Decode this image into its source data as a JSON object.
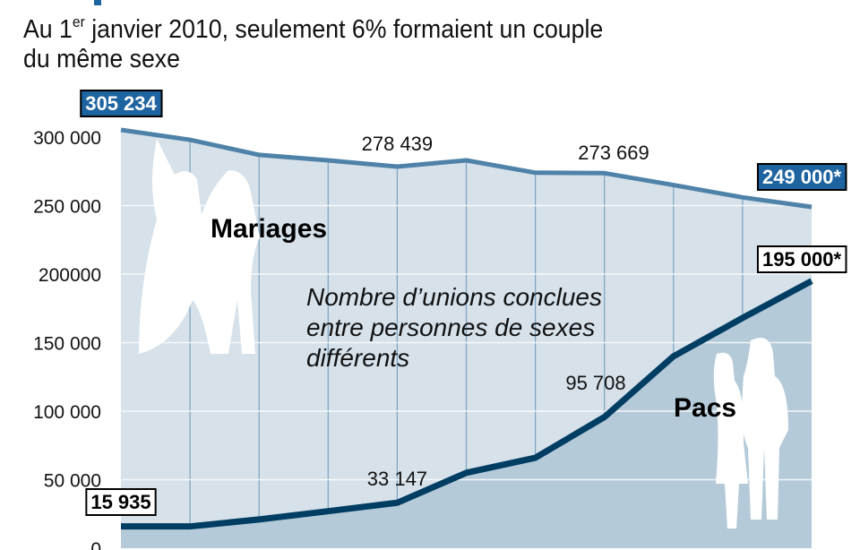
{
  "header": {
    "title_pre": "Au 1",
    "title_sup": "er",
    "title_post": " janvier 2010, seulement 6% formaient un couple",
    "title_line2": "du même sexe"
  },
  "chart_data": {
    "type": "area",
    "title": "Au 1er janvier 2010, seulement 6% formaient un couple du même sexe",
    "xlabel": "",
    "ylabel": "",
    "ylim": [
      0,
      300000
    ],
    "yticks": [
      {
        "v": 0,
        "label": "0"
      },
      {
        "v": 50000,
        "label": "50 000"
      },
      {
        "v": 100000,
        "label": "100 000"
      },
      {
        "v": 150000,
        "label": "150 000"
      },
      {
        "v": 200000,
        "label": "200000"
      },
      {
        "v": 250000,
        "label": "250 000"
      },
      {
        "v": 300000,
        "label": "300 000"
      }
    ],
    "series": [
      {
        "name": "Mariages",
        "color": "#4f82a8",
        "fill": "#d6e1ea",
        "values": [
          305234,
          298000,
          287000,
          283000,
          278439,
          283000,
          274000,
          273669,
          265000,
          256000,
          249000
        ]
      },
      {
        "name": "Pacs",
        "color": "#003d63",
        "fill": "#b5cad9",
        "values": [
          15935,
          15900,
          21000,
          27000,
          33147,
          55000,
          66000,
          95708,
          140000,
          168000,
          195000
        ]
      }
    ],
    "annotations": [
      {
        "series": 0,
        "index": 0,
        "label": "305 234",
        "style": "blue-box"
      },
      {
        "series": 0,
        "index": 4,
        "label": "278 439",
        "style": "plain"
      },
      {
        "series": 0,
        "index": 7,
        "label": "273 669",
        "style": "plain"
      },
      {
        "series": 0,
        "index": 10,
        "label": "249 000*",
        "style": "blue-box"
      },
      {
        "series": 1,
        "index": 0,
        "label": "15 935",
        "style": "white-box"
      },
      {
        "series": 1,
        "index": 4,
        "label": "33 147",
        "style": "plain"
      },
      {
        "series": 1,
        "index": 7,
        "label": "95 708",
        "style": "plain"
      },
      {
        "series": 1,
        "index": 10,
        "label": "195 000*",
        "style": "white-box"
      }
    ],
    "series_labels": {
      "mariages": "Mariages",
      "pacs": "Pacs"
    },
    "note": [
      "Nombre d’unions conclues",
      "entre personnes de sexes",
      "différents"
    ]
  }
}
